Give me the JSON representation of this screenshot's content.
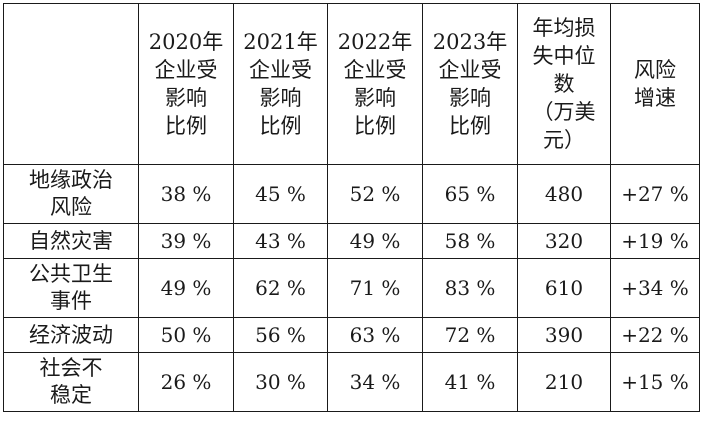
{
  "table": {
    "headers": [
      "",
      "2020年\n企业受\n影响\n比例",
      "2021年\n企业受\n影响\n比例",
      "2022年\n企业受\n影响\n比例",
      "2023年\n企业受\n影响\n比例",
      "年均损\n失中位\n数\n（万美\n元）",
      "风险\n增速"
    ],
    "rows": [
      {
        "label": "地缘政治\n风险",
        "cells": [
          "38 %",
          "45 %",
          "52 %",
          "65 %",
          "480",
          "+27 %"
        ]
      },
      {
        "label": "自然灾害",
        "cells": [
          "39 %",
          "43 %",
          "49 %",
          "58 %",
          "320",
          "+19 %"
        ]
      },
      {
        "label": "公共卫生\n事件",
        "cells": [
          "49 %",
          "62 %",
          "71 %",
          "83 %",
          "610",
          "+34 %"
        ]
      },
      {
        "label": "经济波动",
        "cells": [
          "50 %",
          "56 %",
          "63 %",
          "72 %",
          "390",
          "+22 %"
        ]
      },
      {
        "label": "社会不\n稳定",
        "cells": [
          "26 %",
          "30 %",
          "34 %",
          "41 %",
          "210",
          "+15 %"
        ]
      }
    ]
  }
}
